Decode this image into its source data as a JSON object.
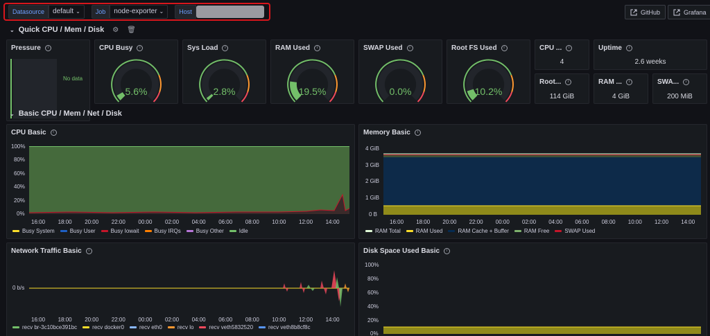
{
  "variables": {
    "datasource_label": "Datasource",
    "datasource_value": "default",
    "job_label": "Job",
    "job_value": "node-exporter",
    "host_label": "Host"
  },
  "header_buttons": {
    "github": "GitHub",
    "grafana": "Grafana"
  },
  "rows": {
    "quick": "Quick CPU / Mem / Disk",
    "basic": "Basic CPU / Mem / Net / Disk"
  },
  "stats": {
    "pressure": {
      "title": "Pressure",
      "value": "No data"
    },
    "cpu_busy": {
      "title": "CPU Busy",
      "value": "5.6%",
      "fraction": 0.056
    },
    "sys_load": {
      "title": "Sys Load",
      "value": "2.8%",
      "fraction": 0.028
    },
    "ram_used": {
      "title": "RAM Used",
      "value": "19.5%",
      "fraction": 0.195
    },
    "swap_used": {
      "title": "SWAP Used",
      "value": "0.0%",
      "fraction": 0.0
    },
    "root_fs_used": {
      "title": "Root FS Used",
      "value": "10.2%",
      "fraction": 0.102
    },
    "cpu_cores": {
      "title": "CPU ...",
      "value": "4"
    },
    "uptime": {
      "title": "Uptime",
      "value": "2.6 weeks"
    },
    "root_fs_total": {
      "title": "Root...",
      "value": "114 GiB"
    },
    "ram_total": {
      "title": "RAM ...",
      "value": "4 GiB"
    },
    "swap_total": {
      "title": "SWA...",
      "value": "200 MiB"
    }
  },
  "colors": {
    "green": "#73bf69",
    "yellow": "#fade2a",
    "red": "#f2495c",
    "orange": "#ff9830",
    "blue": "#5794f2",
    "purple": "#b877d9"
  },
  "x_ticks": [
    "16:00",
    "18:00",
    "20:00",
    "22:00",
    "00:00",
    "02:00",
    "04:00",
    "06:00",
    "08:00",
    "10:00",
    "12:00",
    "14:00"
  ],
  "panels": {
    "cpu_basic": {
      "title": "CPU Basic",
      "y_ticks": [
        "100%",
        "80%",
        "60%",
        "40%",
        "20%",
        "0%"
      ],
      "legend": [
        {
          "name": "Busy System",
          "color": "#fade2a"
        },
        {
          "name": "Busy User",
          "color": "#1f60c4"
        },
        {
          "name": "Busy Iowait",
          "color": "#c4162a"
        },
        {
          "name": "Busy IRQs",
          "color": "#ff7f00"
        },
        {
          "name": "Busy Other",
          "color": "#b877d9"
        },
        {
          "name": "Idle",
          "color": "#73bf69"
        }
      ]
    },
    "memory_basic": {
      "title": "Memory Basic",
      "y_ticks": [
        "4 GiB",
        "3 GiB",
        "2 GiB",
        "1 GiB",
        "0 B"
      ],
      "legend": [
        {
          "name": "RAM Total",
          "color": "#e0f9d7"
        },
        {
          "name": "RAM Used",
          "color": "#fade2a"
        },
        {
          "name": "RAM Cache + Buffer",
          "color": "#052b51"
        },
        {
          "name": "RAM Free",
          "color": "#7eb26d"
        },
        {
          "name": "SWAP Used",
          "color": "#c4162a"
        }
      ]
    },
    "network_basic": {
      "title": "Network Traffic Basic",
      "y_ticks": [
        "0 b/s"
      ],
      "legend": [
        {
          "name": "recv br-3c10bce391bc",
          "color": "#73bf69"
        },
        {
          "name": "recv docker0",
          "color": "#fade2a"
        },
        {
          "name": "recv eth0",
          "color": "#8ab8ff"
        },
        {
          "name": "recv lo",
          "color": "#ff9830"
        },
        {
          "name": "recv veth5832520",
          "color": "#f2495c"
        },
        {
          "name": "recv veth8b8cf8c",
          "color": "#5794f2"
        }
      ]
    },
    "disk_basic": {
      "title": "Disk Space Used Basic",
      "y_ticks": [
        "100%",
        "80%",
        "60%",
        "40%",
        "20%",
        "0%"
      ]
    }
  }
}
